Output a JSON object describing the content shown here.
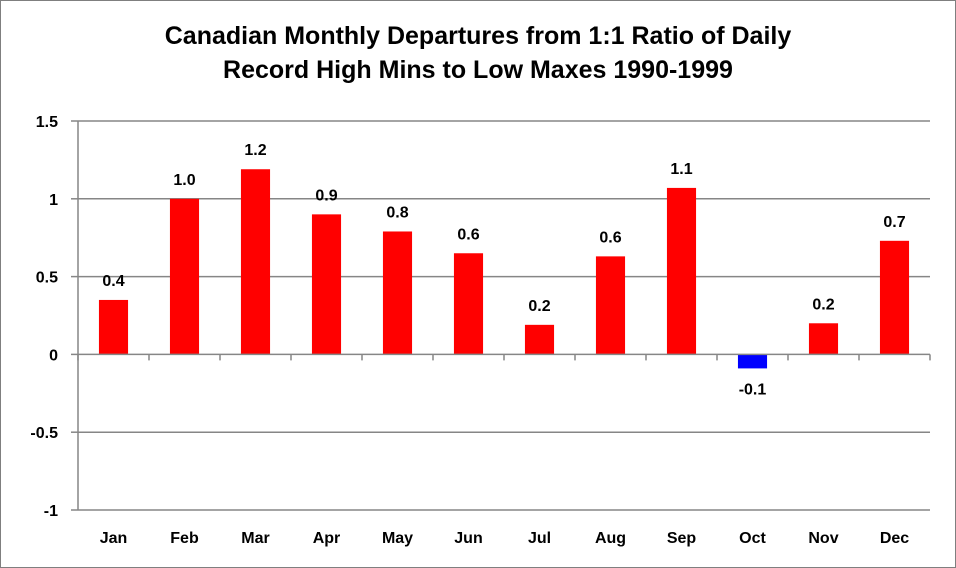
{
  "chart_data": {
    "type": "bar",
    "title_lines": [
      "Canadian Monthly Departures from 1:1 Ratio of Daily",
      "Record High Mins to Low Maxes 1990-1999"
    ],
    "categories": [
      "Jan",
      "Feb",
      "Mar",
      "Apr",
      "May",
      "Jun",
      "Jul",
      "Aug",
      "Sep",
      "Oct",
      "Nov",
      "Dec"
    ],
    "values": [
      0.35,
      1.0,
      1.19,
      0.9,
      0.79,
      0.65,
      0.19,
      0.63,
      1.07,
      -0.09,
      0.2,
      0.73
    ],
    "data_labels": [
      "0.4",
      "1.0",
      "1.2",
      "0.9",
      "0.8",
      "0.6",
      "0.2",
      "0.6",
      "1.1",
      "-0.1",
      "0.2",
      "0.7"
    ],
    "ylim": [
      -1,
      1.5
    ],
    "yticks": [
      1.5,
      1,
      0.5,
      0,
      -0.5,
      -1
    ],
    "ytick_labels": [
      "1.5",
      "1",
      "0.5",
      "0",
      "-0.5",
      "-1"
    ],
    "grid": true,
    "legend": "none",
    "colors": {
      "positive": "#ff0000",
      "negative": "#0000ff",
      "grid": "#868686",
      "axis": "#868686"
    }
  }
}
